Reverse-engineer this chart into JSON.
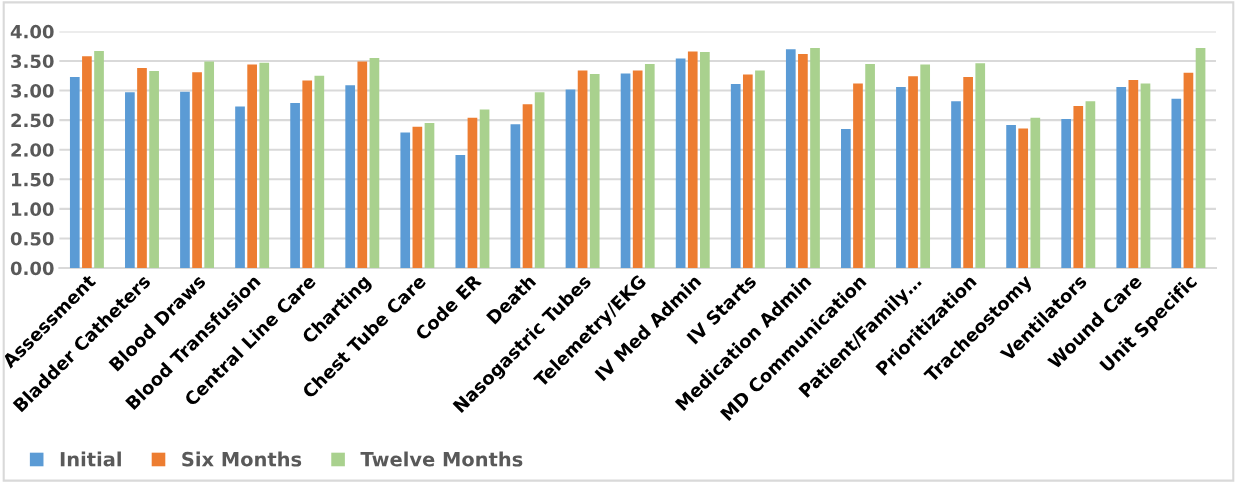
{
  "chart_data": {
    "type": "bar",
    "categories": [
      "Assessment",
      "Bladder Catheters",
      "Blood Draws",
      "Blood Transfusion",
      "Central Line Care",
      "Charting",
      "Chest Tube Care",
      "Code ER",
      "Death",
      "Nasogastric Tubes",
      "Telemetry/EKG",
      "IV Med Admin",
      "IV Starts",
      "Medication Admin",
      "MD Communication",
      "Patient/Family…",
      "Prioritization",
      "Tracheostomy",
      "Ventilators",
      "Wound Care",
      "Unit Specific"
    ],
    "series": [
      {
        "name": "Initial",
        "color": "#5b9bd5",
        "values": [
          3.23,
          2.97,
          2.98,
          2.73,
          2.79,
          3.09,
          2.29,
          1.91,
          2.43,
          3.02,
          3.29,
          3.54,
          3.11,
          3.7,
          2.35,
          3.06,
          2.82,
          2.42,
          2.52,
          3.06,
          2.86
        ]
      },
      {
        "name": "Six Months",
        "color": "#ed7d31",
        "values": [
          3.58,
          3.38,
          3.31,
          3.44,
          3.17,
          3.49,
          2.39,
          2.54,
          2.77,
          3.34,
          3.34,
          3.66,
          3.27,
          3.62,
          3.12,
          3.24,
          3.23,
          2.36,
          2.74,
          3.18,
          3.3
        ]
      },
      {
        "name": "Twelve Months",
        "color": "#a9d18e",
        "values": [
          3.67,
          3.33,
          3.49,
          3.47,
          3.25,
          3.55,
          2.45,
          2.68,
          2.97,
          3.28,
          3.45,
          3.65,
          3.34,
          3.72,
          3.45,
          3.44,
          3.46,
          2.54,
          2.82,
          3.12,
          3.72
        ]
      }
    ],
    "ylim": [
      0,
      4
    ],
    "yticks": [
      {
        "value": 0,
        "label": "0.00"
      },
      {
        "value": 0.5,
        "label": "0.50"
      },
      {
        "value": 1,
        "label": "1.00"
      },
      {
        "value": 1.5,
        "label": "1.50"
      },
      {
        "value": 2,
        "label": "2.00"
      },
      {
        "value": 2.5,
        "label": "2.50"
      },
      {
        "value": 3,
        "label": "3.00"
      },
      {
        "value": 3.5,
        "label": "3.50"
      },
      {
        "value": 4,
        "label": "4.00"
      }
    ],
    "grid": "y",
    "legend": "bottom left"
  }
}
